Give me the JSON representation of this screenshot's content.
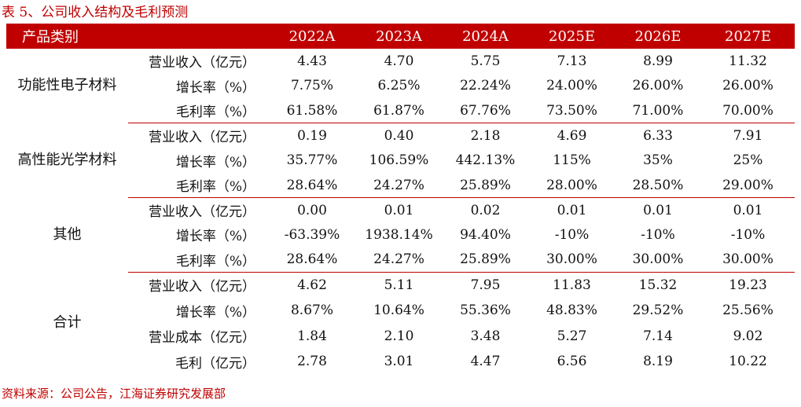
{
  "title": "表 5、公司收入结构及毛利预测",
  "header": {
    "category_label": "产品类别",
    "years": [
      "2022A",
      "2023A",
      "2024A",
      "2025E",
      "2026E",
      "2027E"
    ]
  },
  "groups": [
    {
      "name": "功能性电子材料",
      "rows": [
        {
          "metric": "营业收入（亿元）",
          "values": [
            "4.43",
            "4.70",
            "5.75",
            "7.13",
            "8.99",
            "11.32"
          ]
        },
        {
          "metric": "增长率（%）",
          "values": [
            "7.75%",
            "6.25%",
            "22.24%",
            "24.00%",
            "26.00%",
            "26.00%"
          ]
        },
        {
          "metric": "毛利率（%）",
          "values": [
            "61.58%",
            "61.87%",
            "67.76%",
            "73.50%",
            "71.00%",
            "70.00%"
          ]
        }
      ]
    },
    {
      "name": "高性能光学材料",
      "rows": [
        {
          "metric": "营业收入（亿元）",
          "values": [
            "0.19",
            "0.40",
            "2.18",
            "4.69",
            "6.33",
            "7.91"
          ]
        },
        {
          "metric": "增长率（%）",
          "values": [
            "35.77%",
            "106.59%",
            "442.13%",
            "115%",
            "35%",
            "25%"
          ]
        },
        {
          "metric": "毛利率（%）",
          "values": [
            "28.64%",
            "24.27%",
            "25.89%",
            "28.00%",
            "28.50%",
            "29.00%"
          ]
        }
      ]
    },
    {
      "name": "其他",
      "rows": [
        {
          "metric": "营业收入（亿元）",
          "values": [
            "0.00",
            "0.01",
            "0.02",
            "0.01",
            "0.01",
            "0.01"
          ]
        },
        {
          "metric": "增长率（%）",
          "values": [
            "-63.39%",
            "1938.14%",
            "94.40%",
            "-10%",
            "-10%",
            "-10%"
          ]
        },
        {
          "metric": "毛利率（%）",
          "values": [
            "28.64%",
            "24.27%",
            "25.89%",
            "30.00%",
            "30.00%",
            "30.00%"
          ]
        }
      ]
    },
    {
      "name": "合计",
      "rows": [
        {
          "metric": "营业收入（亿元）",
          "values": [
            "4.62",
            "5.11",
            "7.95",
            "11.83",
            "15.32",
            "19.23"
          ]
        },
        {
          "metric": "增长率（%）",
          "values": [
            "8.67%",
            "10.64%",
            "55.36%",
            "48.83%",
            "29.52%",
            "25.56%"
          ]
        },
        {
          "metric": "营业成本（亿元）",
          "values": [
            "1.84",
            "2.10",
            "3.48",
            "5.27",
            "7.14",
            "9.02"
          ]
        },
        {
          "metric": "毛利（亿元）",
          "values": [
            "2.78",
            "3.01",
            "4.47",
            "6.56",
            "8.19",
            "10.22"
          ]
        }
      ]
    }
  ],
  "source": "资料来源：公司公告，江海证券研究发展部"
}
